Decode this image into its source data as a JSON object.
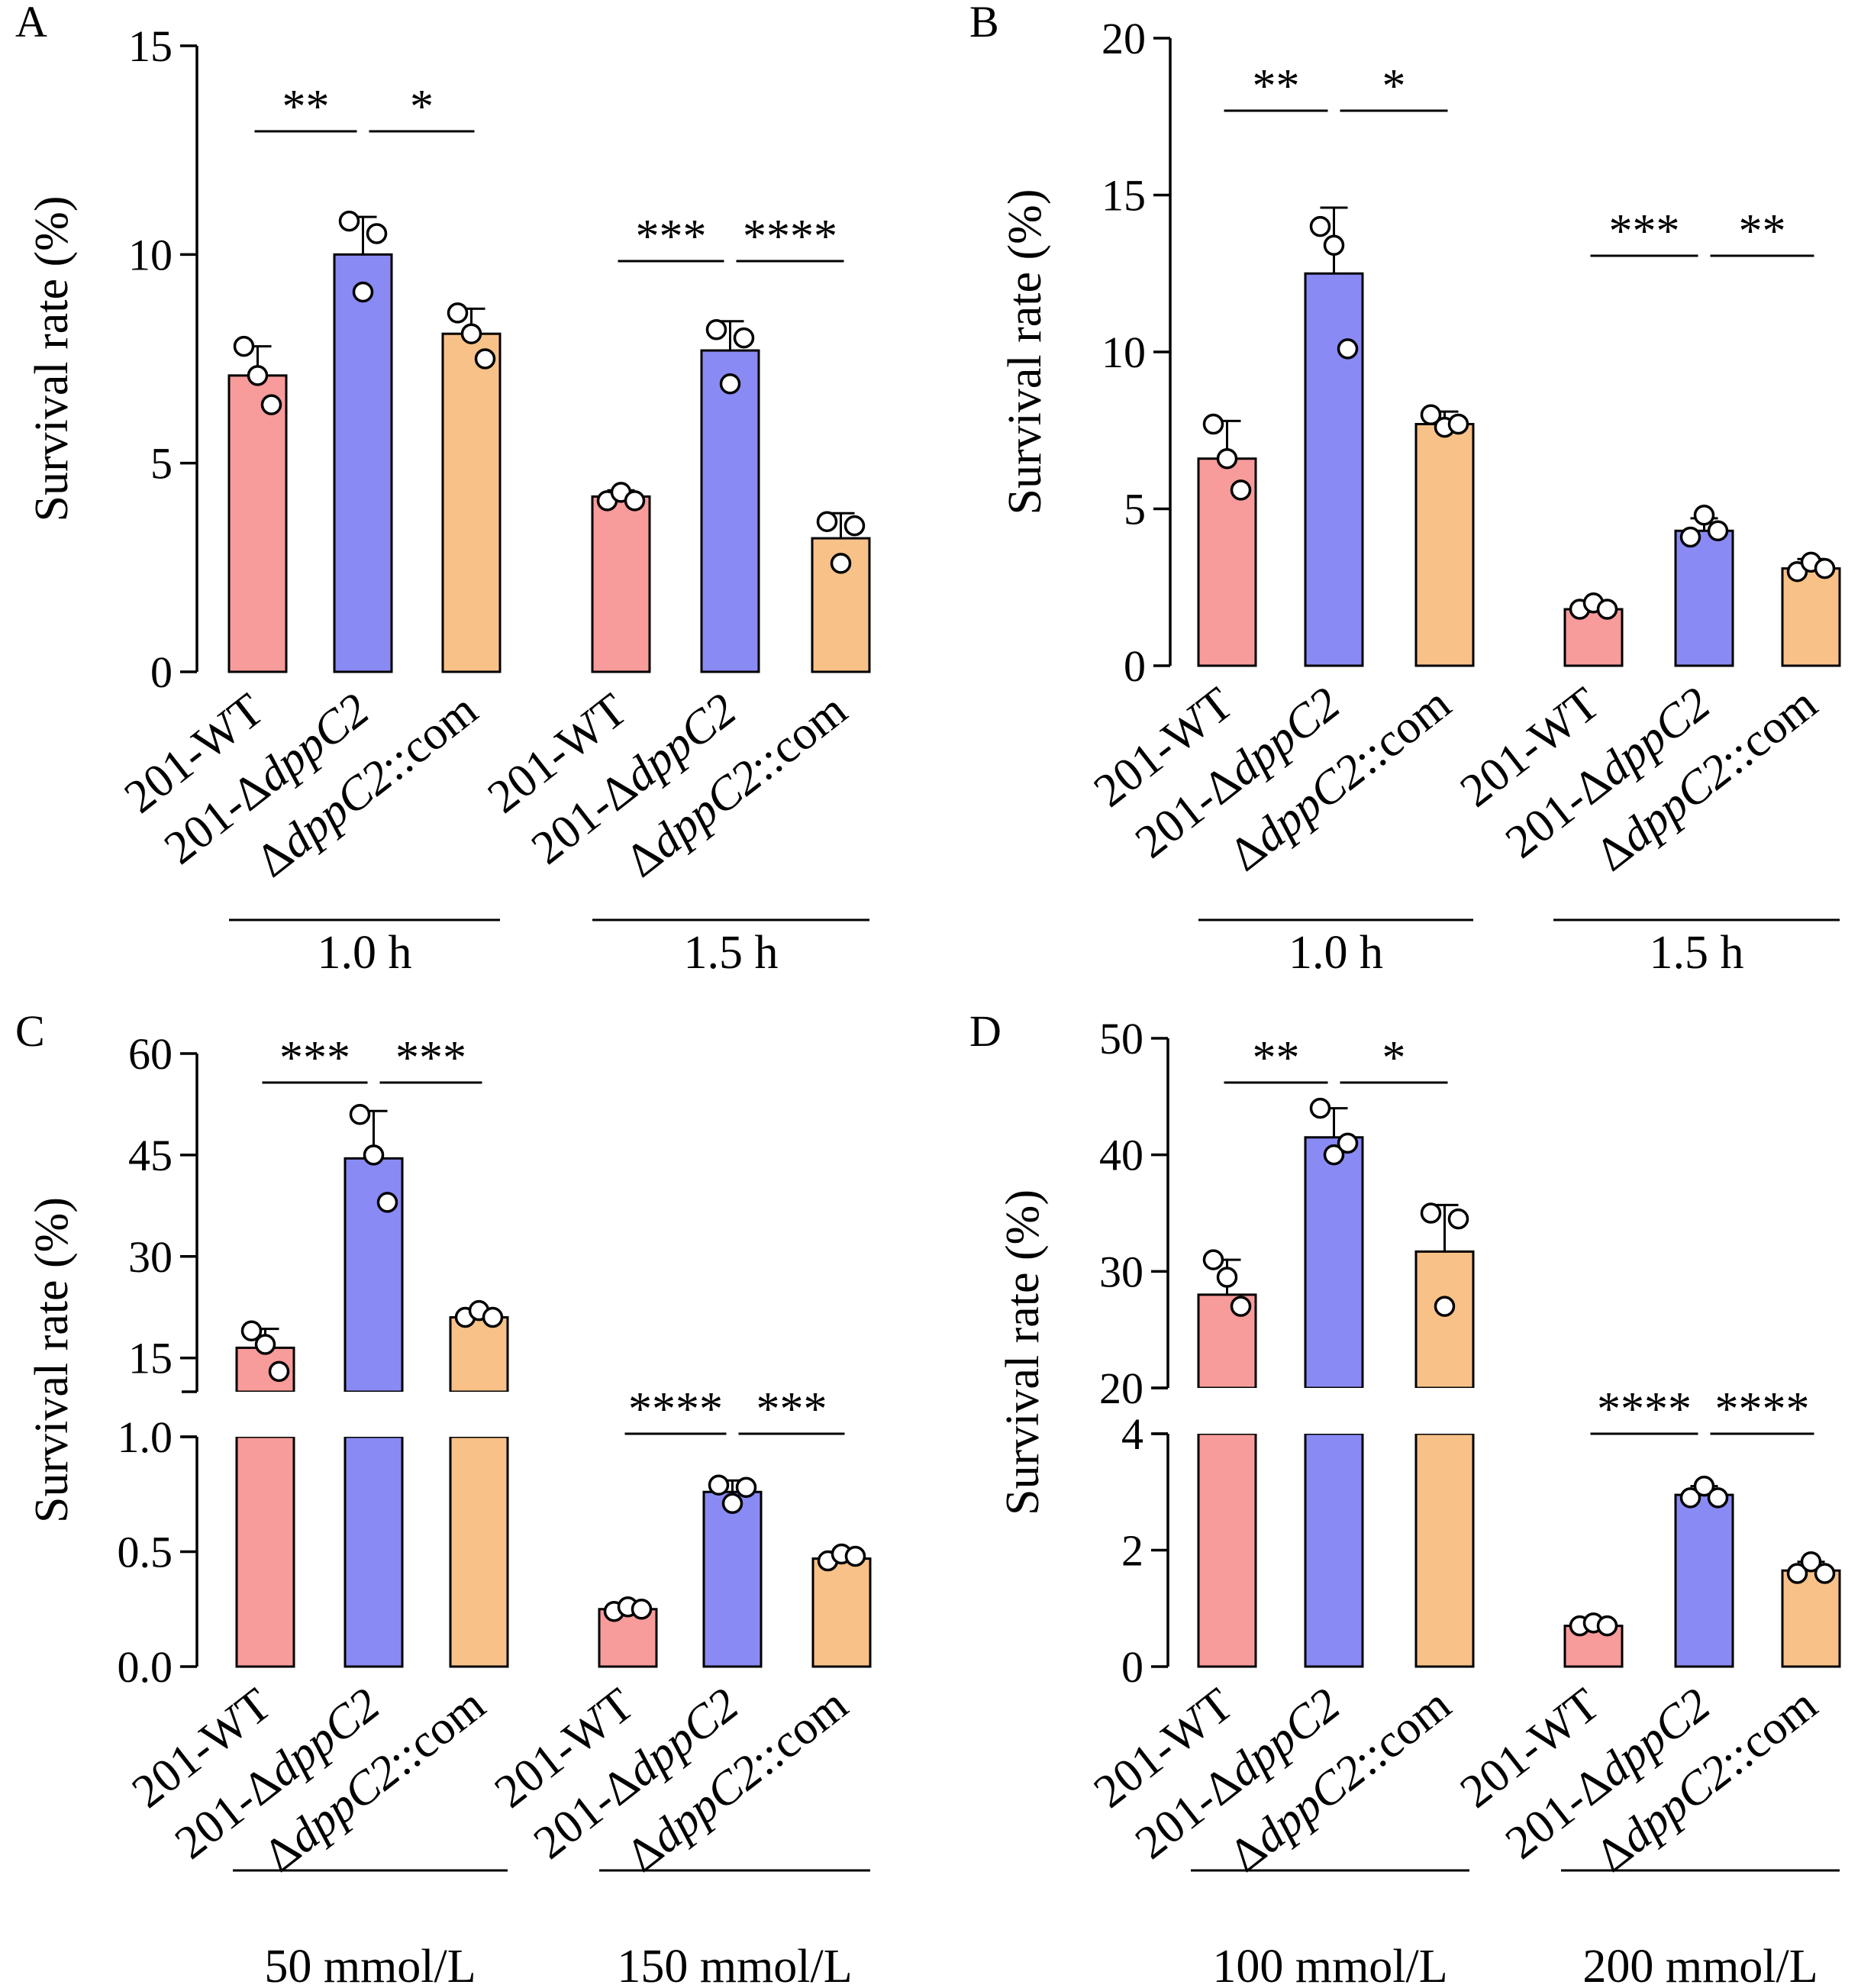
{
  "figure": {
    "panels": [
      {
        "letter": "A",
        "ylabel": "Survival rate (%)",
        "groups": [
          "1.0 h",
          "1.5 h"
        ],
        "categories": [
          "201-WT",
          "201-ΔdppC2",
          "ΔdppC2::com"
        ],
        "ticks": [
          "0",
          "5",
          "10",
          "15"
        ],
        "significance": [
          [
            "**",
            "*"
          ],
          [
            "***",
            "****"
          ]
        ]
      },
      {
        "letter": "B",
        "ylabel": "Survival rate (%)",
        "groups": [
          "1.0 h",
          "1.5 h"
        ],
        "categories": [
          "201-WT",
          "201-ΔdppC2",
          "ΔdppC2::com"
        ],
        "ticks": [
          "0",
          "5",
          "10",
          "15",
          "20"
        ],
        "significance": [
          [
            "**",
            "*"
          ],
          [
            "***",
            "**"
          ]
        ]
      },
      {
        "letter": "C",
        "ylabel": "Survival rate (%)",
        "groups": [
          "50 mmol/L",
          "150 mmol/L"
        ],
        "categories": [
          "201-WT",
          "201-ΔdppC2",
          "ΔdppC2::com"
        ],
        "ticks_lower": [
          "0.0",
          "0.5",
          "1.0"
        ],
        "ticks_upper": [
          "15",
          "30",
          "45",
          "60"
        ],
        "significance": [
          [
            "***",
            "***"
          ],
          [
            "****",
            "***"
          ]
        ]
      },
      {
        "letter": "D",
        "ylabel": "Survival rate (%)",
        "groups": [
          "100 mmol/L",
          "200  mmol/L"
        ],
        "categories": [
          "201-WT",
          "201-ΔdppC2",
          "ΔdppC2::com"
        ],
        "ticks_lower": [
          "0",
          "2",
          "4"
        ],
        "ticks_upper": [
          "20",
          "30",
          "40",
          "50"
        ],
        "significance": [
          [
            "**",
            "*"
          ],
          [
            "****",
            "****"
          ]
        ]
      }
    ]
  },
  "colors": {
    "WT": "#f89b9b",
    "knockout": "#8a8af5",
    "complement": "#f8c188",
    "axis": "#000000"
  },
  "chart_data": [
    {
      "type": "bar",
      "panel": "A",
      "ylabel": "Survival rate (%)",
      "ylim": [
        0,
        15
      ],
      "groups": [
        "1.0 h",
        "1.5 h"
      ],
      "categories": [
        "201-WT",
        "201-ΔdppC2",
        "ΔdppC2::com"
      ],
      "bars": [
        {
          "group": "1.0 h",
          "category": "201-WT",
          "mean": 7.1,
          "sd": 0.7,
          "points": [
            7.8,
            7.1,
            6.4
          ]
        },
        {
          "group": "1.0 h",
          "category": "201-ΔdppC2",
          "mean": 10.0,
          "sd": 0.9,
          "points": [
            10.8,
            9.1,
            10.5
          ]
        },
        {
          "group": "1.0 h",
          "category": "ΔdppC2::com",
          "mean": 8.1,
          "sd": 0.6,
          "points": [
            8.6,
            8.1,
            7.5
          ]
        },
        {
          "group": "1.5 h",
          "category": "201-WT",
          "mean": 4.2,
          "sd": 0.15,
          "points": [
            4.1,
            4.3,
            4.1
          ]
        },
        {
          "group": "1.5 h",
          "category": "201-ΔdppC2",
          "mean": 7.7,
          "sd": 0.7,
          "points": [
            8.2,
            6.9,
            8.0
          ]
        },
        {
          "group": "1.5 h",
          "category": "ΔdppC2::com",
          "mean": 3.2,
          "sd": 0.6,
          "points": [
            3.6,
            2.6,
            3.5
          ]
        }
      ],
      "significance": [
        {
          "group": "1.0 h",
          "pair": [
            "201-WT",
            "201-ΔdppC2"
          ],
          "label": "**"
        },
        {
          "group": "1.0 h",
          "pair": [
            "201-ΔdppC2",
            "ΔdppC2::com"
          ],
          "label": "*"
        },
        {
          "group": "1.5 h",
          "pair": [
            "201-WT",
            "201-ΔdppC2"
          ],
          "label": "***"
        },
        {
          "group": "1.5 h",
          "pair": [
            "201-ΔdppC2",
            "ΔdppC2::com"
          ],
          "label": "****"
        }
      ]
    },
    {
      "type": "bar",
      "panel": "B",
      "ylabel": "Survival rate (%)",
      "ylim": [
        0,
        20
      ],
      "groups": [
        "1.0 h",
        "1.5 h"
      ],
      "categories": [
        "201-WT",
        "201-ΔdppC2",
        "ΔdppC2::com"
      ],
      "bars": [
        {
          "group": "1.0 h",
          "category": "201-WT",
          "mean": 6.6,
          "sd": 1.2,
          "points": [
            7.7,
            6.6,
            5.6
          ]
        },
        {
          "group": "1.0 h",
          "category": "201-ΔdppC2",
          "mean": 12.5,
          "sd": 2.1,
          "points": [
            14.0,
            13.4,
            10.1
          ]
        },
        {
          "group": "1.0 h",
          "category": "ΔdppC2::com",
          "mean": 7.7,
          "sd": 0.4,
          "points": [
            8.0,
            7.6,
            7.7
          ]
        },
        {
          "group": "1.5 h",
          "category": "201-WT",
          "mean": 1.8,
          "sd": 0.2,
          "points": [
            1.8,
            2.0,
            1.8
          ]
        },
        {
          "group": "1.5 h",
          "category": "201-ΔdppC2",
          "mean": 4.3,
          "sd": 0.4,
          "points": [
            4.1,
            4.8,
            4.3
          ]
        },
        {
          "group": "1.5 h",
          "category": "ΔdppC2::com",
          "mean": 3.1,
          "sd": 0.3,
          "points": [
            3.0,
            3.3,
            3.1
          ]
        }
      ],
      "significance": [
        {
          "group": "1.0 h",
          "pair": [
            "201-WT",
            "201-ΔdppC2"
          ],
          "label": "**"
        },
        {
          "group": "1.0 h",
          "pair": [
            "201-ΔdppC2",
            "ΔdppC2::com"
          ],
          "label": "*"
        },
        {
          "group": "1.5 h",
          "pair": [
            "201-WT",
            "201-ΔdppC2"
          ],
          "label": "***"
        },
        {
          "group": "1.5 h",
          "pair": [
            "201-ΔdppC2",
            "ΔdppC2::com"
          ],
          "label": "**"
        }
      ]
    },
    {
      "type": "bar",
      "panel": "C",
      "ylabel": "Survival rate (%)",
      "y_axis_break": {
        "lower": [
          0,
          1.0
        ],
        "upper": [
          10,
          60
        ]
      },
      "groups": [
        "50 mmol/L",
        "150 mmol/L"
      ],
      "categories": [
        "201-WT",
        "201-ΔdppC2",
        "ΔdppC2::com"
      ],
      "bars": [
        {
          "group": "50 mmol/L",
          "category": "201-WT",
          "mean": 16.5,
          "sd": 2.8,
          "points": [
            19.0,
            17.0,
            13.0
          ]
        },
        {
          "group": "50 mmol/L",
          "category": "201-ΔdppC2",
          "mean": 44.5,
          "sd": 7.0,
          "points": [
            51.0,
            45.0,
            38.0
          ]
        },
        {
          "group": "50 mmol/L",
          "category": "ΔdppC2::com",
          "mean": 21.0,
          "sd": 1.0,
          "points": [
            21.0,
            22.0,
            21.0
          ]
        },
        {
          "group": "150 mmol/L",
          "category": "201-WT",
          "mean": 0.25,
          "sd": 0.02,
          "points": [
            0.24,
            0.26,
            0.25
          ]
        },
        {
          "group": "150 mmol/L",
          "category": "201-ΔdppC2",
          "mean": 0.76,
          "sd": 0.05,
          "points": [
            0.79,
            0.71,
            0.78
          ]
        },
        {
          "group": "150 mmol/L",
          "category": "ΔdppC2::com",
          "mean": 0.47,
          "sd": 0.03,
          "points": [
            0.46,
            0.49,
            0.48
          ]
        }
      ],
      "significance": [
        {
          "group": "50 mmol/L",
          "pair": [
            "201-WT",
            "201-ΔdppC2"
          ],
          "label": "***"
        },
        {
          "group": "50 mmol/L",
          "pair": [
            "201-ΔdppC2",
            "ΔdppC2::com"
          ],
          "label": "***"
        },
        {
          "group": "150 mmol/L",
          "pair": [
            "201-WT",
            "201-ΔdppC2"
          ],
          "label": "****"
        },
        {
          "group": "150 mmol/L",
          "pair": [
            "201-ΔdppC2",
            "ΔdppC2::com"
          ],
          "label": "***"
        }
      ]
    },
    {
      "type": "bar",
      "panel": "D",
      "ylabel": "Survival rate (%)",
      "y_axis_break": {
        "lower": [
          0,
          4
        ],
        "upper": [
          20,
          50
        ]
      },
      "groups": [
        "100 mmol/L",
        "200  mmol/L"
      ],
      "categories": [
        "201-WT",
        "201-ΔdppC2",
        "ΔdppC2::com"
      ],
      "bars": [
        {
          "group": "100 mmol/L",
          "category": "201-WT",
          "mean": 28.0,
          "sd": 3.0,
          "points": [
            31.0,
            29.5,
            27.0
          ]
        },
        {
          "group": "100 mmol/L",
          "category": "201-ΔdppC2",
          "mean": 41.5,
          "sd": 2.5,
          "points": [
            44.0,
            40.0,
            41.0
          ]
        },
        {
          "group": "100 mmol/L",
          "category": "ΔdppC2::com",
          "mean": 31.7,
          "sd": 4.0,
          "points": [
            35.0,
            27.0,
            34.5
          ]
        },
        {
          "group": "200  mmol/L",
          "category": "201-WT",
          "mean": 0.7,
          "sd": 0.1,
          "points": [
            0.7,
            0.75,
            0.7
          ]
        },
        {
          "group": "200  mmol/L",
          "category": "201-ΔdppC2",
          "mean": 2.95,
          "sd": 0.15,
          "points": [
            2.9,
            3.1,
            2.9
          ]
        },
        {
          "group": "200  mmol/L",
          "category": "ΔdppC2::com",
          "mean": 1.65,
          "sd": 0.15,
          "points": [
            1.6,
            1.8,
            1.6
          ]
        }
      ],
      "significance": [
        {
          "group": "100 mmol/L",
          "pair": [
            "201-WT",
            "201-ΔdppC2"
          ],
          "label": "**"
        },
        {
          "group": "100 mmol/L",
          "pair": [
            "201-ΔdppC2",
            "ΔdppC2::com"
          ],
          "label": "*"
        },
        {
          "group": "200  mmol/L",
          "pair": [
            "201-WT",
            "201-ΔdppC2"
          ],
          "label": "****"
        },
        {
          "group": "200  mmol/L",
          "pair": [
            "201-ΔdppC2",
            "ΔdppC2::com"
          ],
          "label": "****"
        }
      ]
    }
  ]
}
